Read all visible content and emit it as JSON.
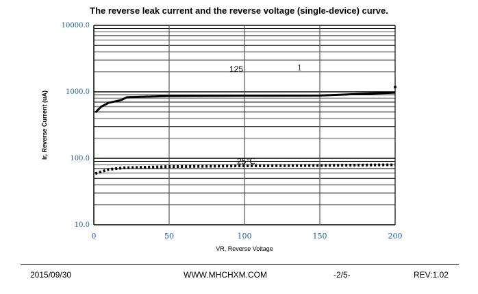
{
  "chart_data": {
    "type": "line",
    "title": "The reverse leak current and the reverse voltage (single-device) curve.",
    "xlabel": "VR, Reverse Voltage",
    "ylabel": "Ir, Reverse Current (uA)",
    "xlim": [
      0,
      200
    ],
    "ylim": [
      10,
      10000
    ],
    "yscale": "log",
    "grid": true,
    "xticks": [
      "0",
      "50",
      "100",
      "150",
      "200"
    ],
    "yticks": [
      "10.0",
      "100.0",
      "1000.0",
      "10000.0"
    ],
    "series": [
      {
        "name": "125",
        "style": "solid",
        "x": [
          1,
          5,
          10,
          18,
          22,
          50,
          100,
          150,
          200
        ],
        "y": [
          490,
          600,
          685,
          750,
          830,
          865,
          875,
          880,
          975
        ]
      },
      {
        "name": "25℃",
        "style": "dotted",
        "x": [
          1,
          10,
          20,
          50,
          100,
          150,
          200
        ],
        "y": [
          59,
          68,
          72,
          75,
          77,
          78,
          80
        ]
      }
    ],
    "extra_points": [
      {
        "x": 200,
        "y": 1180
      }
    ],
    "annotations": [
      {
        "text": "125",
        "x": 90,
        "y": 2000
      },
      {
        "text": "25℃",
        "x": 95,
        "y": 82
      },
      {
        "text": "1",
        "x": 135,
        "y": 2100
      }
    ]
  },
  "footer": {
    "date": "2015/09/30",
    "website": "WWW.MHCHXM.COM",
    "page": "-2/5-",
    "rev": "REV:1.02"
  }
}
